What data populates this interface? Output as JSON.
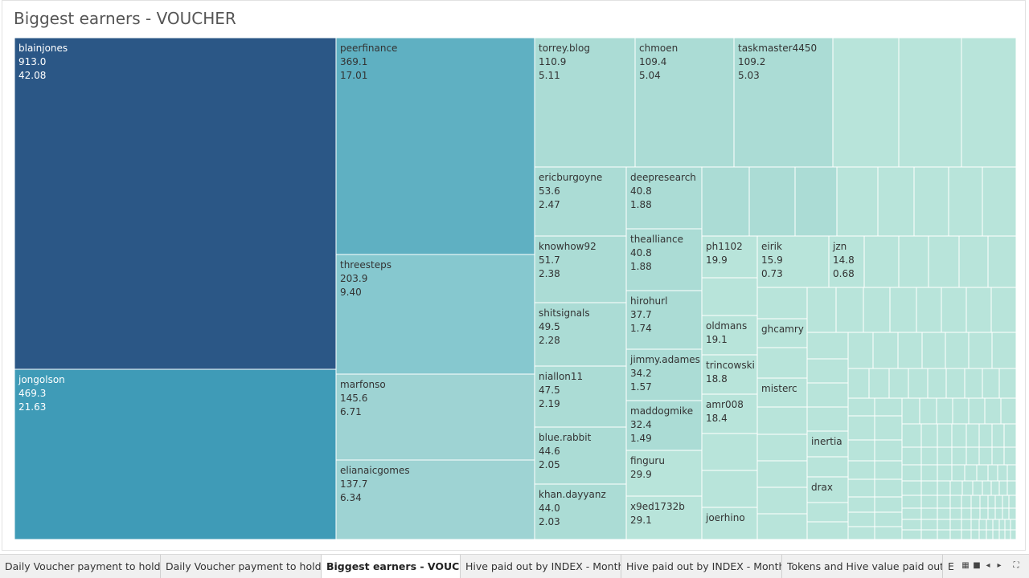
{
  "chart_title": "Biggest earners - VOUCHER",
  "colors": {
    "dark": "#2b5786",
    "mid": "#3f9bb7",
    "peer": "#5fb0c2",
    "three": "#86c8cf",
    "teal": "#9ed3d3",
    "light": "#abdcd5",
    "lighter": "#b8e4da",
    "label_dark": "#ffffff",
    "label_light": "#333333"
  },
  "chart_data": {
    "type": "treemap",
    "title": "Biggest earners - VOUCHER",
    "items": [
      {
        "name": "blainjones",
        "value": 913.0,
        "percent": 42.08
      },
      {
        "name": "jongolson",
        "value": 469.3,
        "percent": 21.63
      },
      {
        "name": "peerfinance",
        "value": 369.1,
        "percent": 17.01
      },
      {
        "name": "threesteps",
        "value": 203.9,
        "percent": 9.4
      },
      {
        "name": "marfonso",
        "value": 145.6,
        "percent": 6.71
      },
      {
        "name": "elianaicgomes",
        "value": 137.7,
        "percent": 6.34
      },
      {
        "name": "torrey.blog",
        "value": 110.9,
        "percent": 5.11
      },
      {
        "name": "chmoen",
        "value": 109.4,
        "percent": 5.04
      },
      {
        "name": "taskmaster4450",
        "value": 109.2,
        "percent": 5.03
      },
      {
        "name": "ericburgoyne",
        "value": 53.6,
        "percent": 2.47
      },
      {
        "name": "knowhow92",
        "value": 51.7,
        "percent": 2.38
      },
      {
        "name": "shitsignals",
        "value": 49.5,
        "percent": 2.28
      },
      {
        "name": "niallon11",
        "value": 47.5,
        "percent": 2.19
      },
      {
        "name": "blue.rabbit",
        "value": 44.6,
        "percent": 2.05
      },
      {
        "name": "khan.dayyanz",
        "value": 44.0,
        "percent": 2.03
      },
      {
        "name": "deepresearch",
        "value": 40.8,
        "percent": 1.88
      },
      {
        "name": "thealliance",
        "value": 40.8,
        "percent": 1.88
      },
      {
        "name": "hirohurl",
        "value": 37.7,
        "percent": 1.74
      },
      {
        "name": "jimmy.adames",
        "value": 34.2,
        "percent": 1.57
      },
      {
        "name": "maddogmike",
        "value": 32.4,
        "percent": 1.49
      },
      {
        "name": "finguru",
        "value": 29.9,
        "percent": null
      },
      {
        "name": "x9ed1732b",
        "value": 29.1,
        "percent": null
      },
      {
        "name": "ph1102",
        "value": 19.9,
        "percent": null
      },
      {
        "name": "oldmans",
        "value": 19.1,
        "percent": null
      },
      {
        "name": "trincowski",
        "value": 18.8,
        "percent": null
      },
      {
        "name": "amr008",
        "value": 18.4,
        "percent": null
      },
      {
        "name": "eirik",
        "value": 15.9,
        "percent": 0.73
      },
      {
        "name": "jzn",
        "value": 14.8,
        "percent": 0.68
      },
      {
        "name": "joerhino",
        "value": null,
        "percent": null
      },
      {
        "name": "ghcamry",
        "value": null,
        "percent": null
      },
      {
        "name": "misterc",
        "value": null,
        "percent": null
      },
      {
        "name": "inertia",
        "value": null,
        "percent": null
      },
      {
        "name": "drax",
        "value": null,
        "percent": null
      }
    ]
  },
  "tabs": [
    {
      "label": "Daily Voucher payment to holders",
      "active": false
    },
    {
      "label": "Daily Voucher payment to holde...",
      "active": false
    },
    {
      "label": "Biggest earners - VOUCHER",
      "active": true
    },
    {
      "label": "Hive paid out by INDEX - Monthly",
      "active": false
    },
    {
      "label": "Hive paid out by INDEX - Monthl...",
      "active": false
    },
    {
      "label": "Tokens and Hive value paid out ...",
      "active": false
    },
    {
      "label": "E",
      "active": false
    }
  ],
  "nav_icons": [
    "grid-view-icon",
    "sheet-view-icon",
    "prev-icon",
    "next-icon",
    "fullscreen-icon"
  ]
}
